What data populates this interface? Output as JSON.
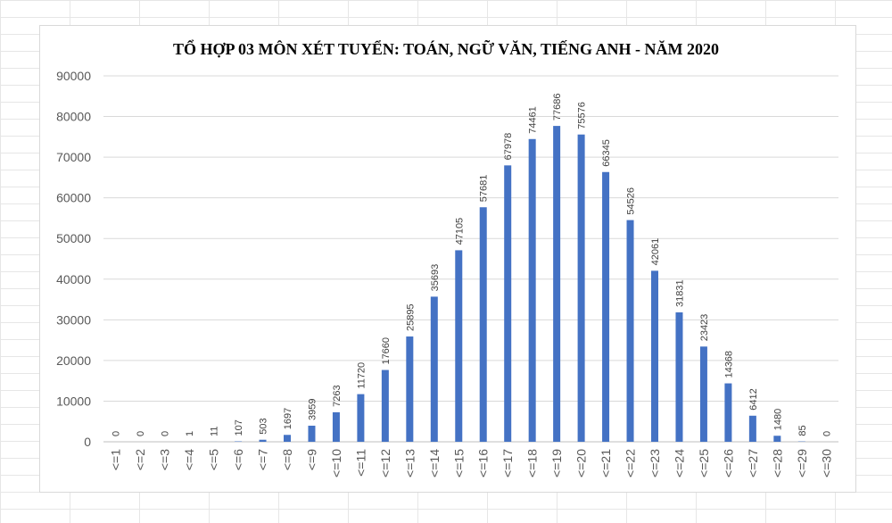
{
  "chart_data": {
    "type": "bar",
    "title": "TỔ HỢP 03 MÔN XÉT TUYỂN: TOÁN, NGỮ VĂN, TIẾNG ANH - NĂM 2020",
    "xlabel": "",
    "ylabel": "",
    "ylim": [
      0,
      90000
    ],
    "yticks": [
      "0",
      "10000",
      "20000",
      "30000",
      "40000",
      "50000",
      "60000",
      "70000",
      "80000",
      "90000"
    ],
    "grid": true,
    "legend": "none",
    "bar_color": "#4472C4",
    "categories": [
      "<=1",
      "<=2",
      "<=3",
      "<=4",
      "<=5",
      "<=6",
      "<=7",
      "<=8",
      "<=9",
      "<=10",
      "<=11",
      "<=12",
      "<=13",
      "<=14",
      "<=15",
      "<=16",
      "<=17",
      "<=18",
      "<=19",
      "<=20",
      "<=21",
      "<=22",
      "<=23",
      "<=24",
      "<=25",
      "<=26",
      "<=27",
      "<=28",
      "<=29",
      "<=30"
    ],
    "values": [
      0,
      0,
      0,
      1,
      11,
      107,
      503,
      1697,
      3959,
      7263,
      11720,
      17660,
      25895,
      35693,
      47105,
      57681,
      67978,
      74461,
      77686,
      75576,
      66345,
      54526,
      42061,
      31831,
      23423,
      14368,
      6412,
      1480,
      85,
      0
    ],
    "data_labels": [
      "0",
      "0",
      "0",
      "1",
      "11",
      "107",
      "503",
      "1697",
      "3959",
      "7263",
      "11720",
      "17660",
      "25895",
      "35693",
      "47105",
      "57681",
      "67978",
      "74461",
      "77686",
      "75576",
      "66345",
      "54526",
      "42061",
      "31831",
      "23423",
      "14368",
      "6412",
      "1480",
      "85",
      "0"
    ]
  }
}
